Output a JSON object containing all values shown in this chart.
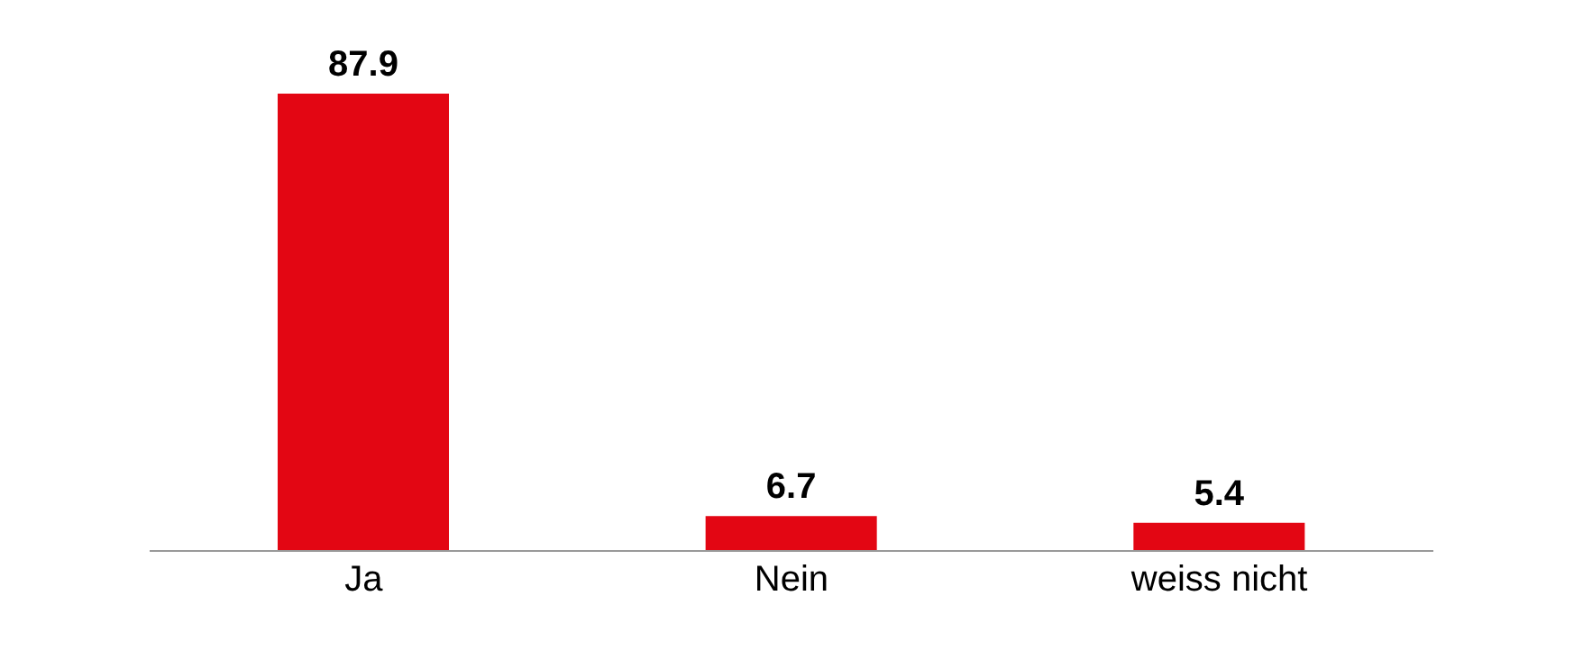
{
  "chart_data": {
    "type": "bar",
    "categories": [
      "Ja",
      "Nein",
      "weiss nicht"
    ],
    "values": [
      87.9,
      6.7,
      5.4
    ],
    "color": "#e30613",
    "data_labels": true
  }
}
